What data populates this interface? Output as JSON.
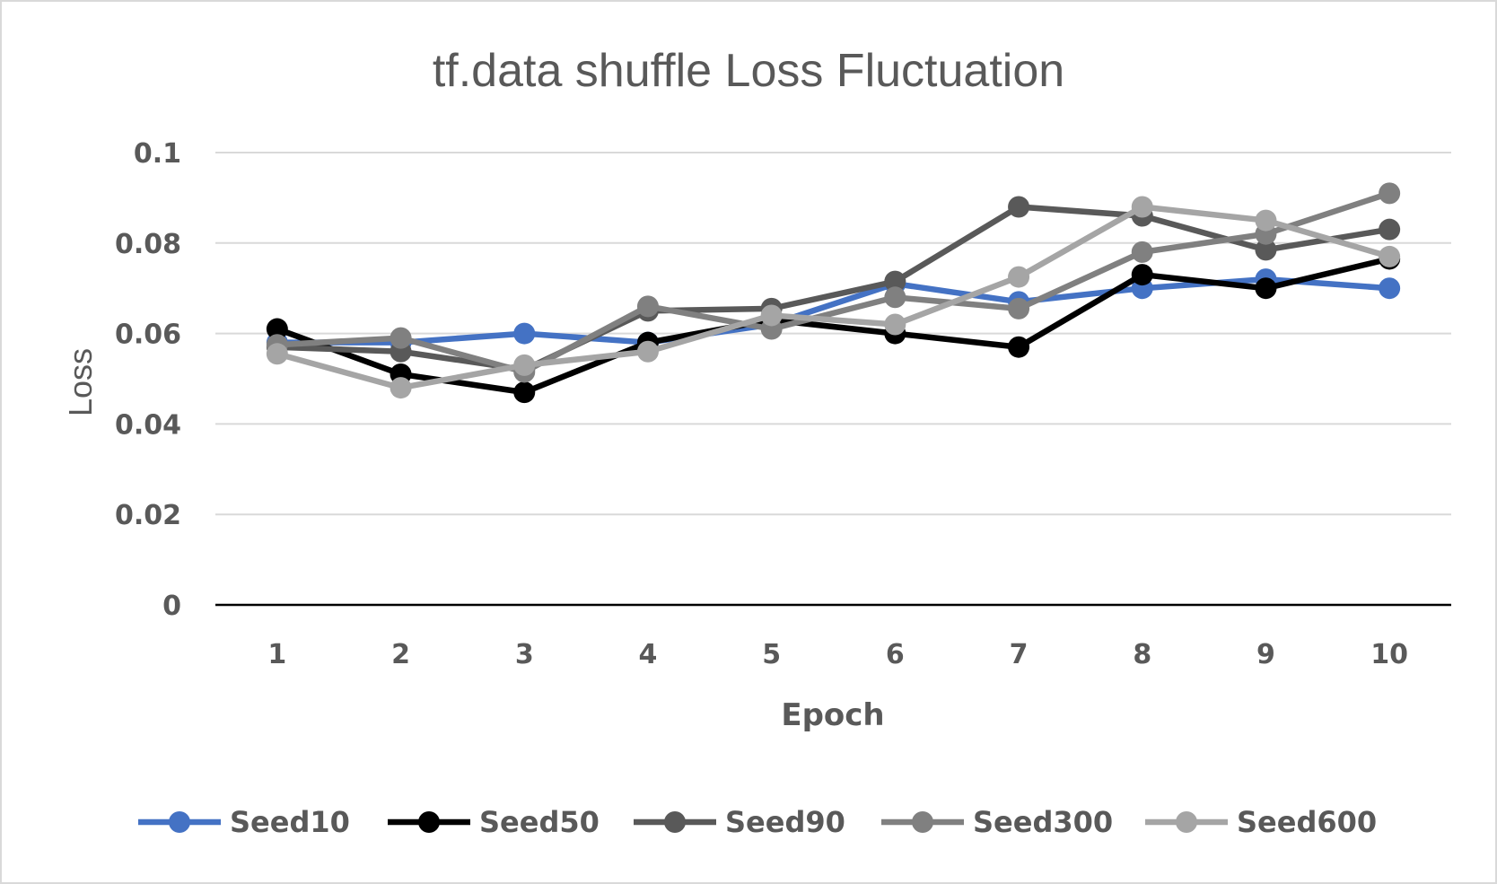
{
  "chart_data": {
    "type": "line",
    "title": "tf.data shuffle Loss Fluctuation",
    "xlabel": "Epoch",
    "ylabel": "Loss",
    "categories": [
      "1",
      "2",
      "3",
      "4",
      "5",
      "6",
      "7",
      "8",
      "9",
      "10"
    ],
    "y_ticks": [
      "0",
      "0.02",
      "0.04",
      "0.06",
      "0.08",
      "0.1"
    ],
    "ylim": [
      0,
      0.1
    ],
    "grid": true,
    "legend_position": "bottom",
    "series": [
      {
        "name": "Seed10",
        "color": "#4472C4",
        "values": [
          0.058,
          0.058,
          0.06,
          0.058,
          0.062,
          0.071,
          0.067,
          0.07,
          0.072,
          0.07
        ]
      },
      {
        "name": "Seed50",
        "color": "#000000",
        "values": [
          0.061,
          0.051,
          0.047,
          0.058,
          0.063,
          0.06,
          0.057,
          0.073,
          0.07,
          0.0765
        ]
      },
      {
        "name": "Seed90",
        "color": "#595959",
        "values": [
          0.057,
          0.056,
          0.052,
          0.065,
          0.0655,
          0.0715,
          0.088,
          0.086,
          0.0785,
          0.083
        ]
      },
      {
        "name": "Seed300",
        "color": "#808080",
        "values": [
          0.0575,
          0.059,
          0.0515,
          0.066,
          0.061,
          0.068,
          0.0655,
          0.078,
          0.082,
          0.091
        ]
      },
      {
        "name": "Seed600",
        "color": "#A5A5A5",
        "values": [
          0.0555,
          0.048,
          0.053,
          0.056,
          0.064,
          0.062,
          0.0725,
          0.088,
          0.085,
          0.077
        ]
      }
    ]
  }
}
